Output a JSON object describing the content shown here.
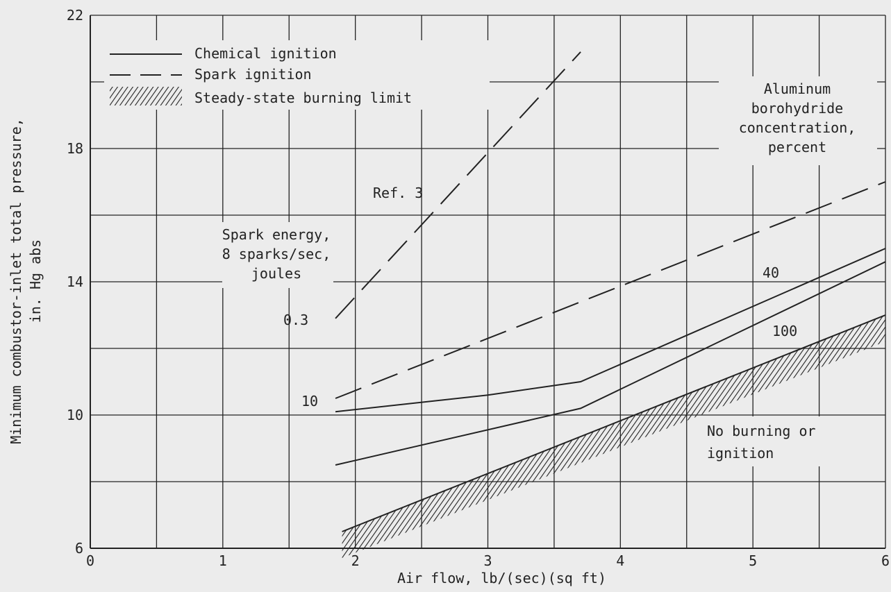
{
  "chart_data": {
    "type": "line",
    "xlabel": "Air flow, lb/(sec)(sq ft)",
    "ylabel_line1": "Minimum combustor-inlet total pressure,",
    "ylabel_line2": "in. Hg abs",
    "xlim": [
      0,
      6
    ],
    "ylim": [
      6,
      22
    ],
    "xticks": [
      0,
      1,
      2,
      3,
      4,
      5,
      6
    ],
    "yticks": [
      6,
      10,
      14,
      18,
      22
    ],
    "grid": true,
    "legend_position": "top-left",
    "legend": [
      "Chemical ignition",
      "Spark ignition",
      "Steady-state burning limit"
    ],
    "series": [
      {
        "name": "Spark ignition",
        "label": "0.3",
        "style": "dashed",
        "x": [
          1.85,
          3.7
        ],
        "y": [
          12.9,
          20.9
        ]
      },
      {
        "name": "Spark ignition",
        "label": "10",
        "style": "dashed",
        "x": [
          1.85,
          3.0,
          6.0
        ],
        "y": [
          10.5,
          12.3,
          17.0
        ]
      },
      {
        "name": "Chemical ignition",
        "label": "40",
        "style": "solid",
        "x": [
          1.85,
          3.0,
          3.7,
          6.0
        ],
        "y": [
          10.1,
          10.6,
          11.0,
          15.0
        ]
      },
      {
        "name": "Chemical ignition",
        "label": "100",
        "style": "solid",
        "x": [
          1.85,
          3.7,
          6.0
        ],
        "y": [
          8.5,
          10.2,
          14.6
        ]
      },
      {
        "name": "Steady-state burning limit",
        "style": "hatched",
        "x": [
          1.9,
          6.0
        ],
        "y": [
          6.5,
          13.0
        ]
      }
    ],
    "annotations": {
      "ref": "Ref. 3",
      "spark_energy": [
        "Spark energy,",
        "8 sparks/sec,",
        "joules"
      ],
      "concentration": [
        "Aluminum",
        "borohydride",
        "concentration,",
        "percent"
      ],
      "no_burning": [
        "No burning or",
        "ignition"
      ]
    }
  },
  "colors": {
    "background": "#ececec",
    "ink": "#222222"
  }
}
